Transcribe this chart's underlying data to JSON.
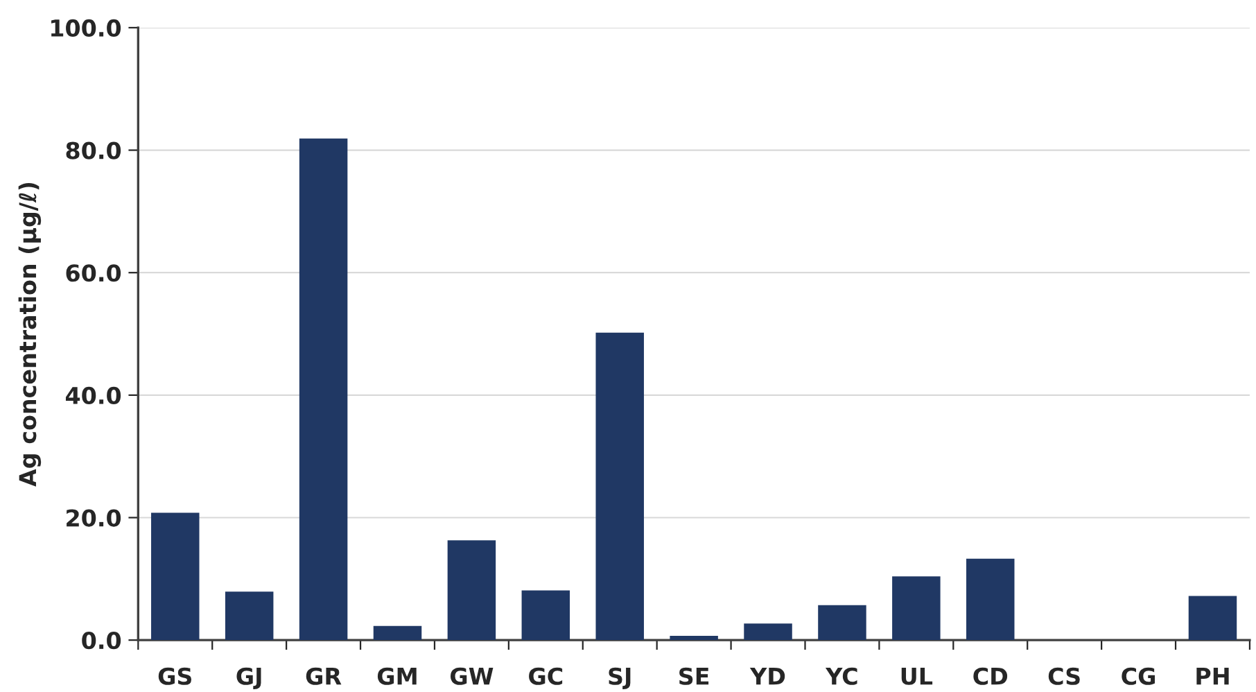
{
  "chart_data": {
    "type": "bar",
    "ylabel": "Ag concentration (μg/ℓ)",
    "categories": [
      "GS",
      "GJ",
      "GR",
      "GM",
      "GW",
      "GC",
      "SJ",
      "SE",
      "YD",
      "YC",
      "UL",
      "CD",
      "CS",
      "CG",
      "PH"
    ],
    "values": [
      20.8,
      7.9,
      81.9,
      2.3,
      16.3,
      8.1,
      50.2,
      0.7,
      2.7,
      5.7,
      10.4,
      13.3,
      0,
      0,
      7.2
    ],
    "color": "#203864",
    "ylim": [
      0,
      100
    ],
    "yticks": [
      {
        "value": 0,
        "label": "0.0"
      },
      {
        "value": 20,
        "label": "20.0"
      },
      {
        "value": 40,
        "label": "40.0"
      },
      {
        "value": 60,
        "label": "60.0"
      },
      {
        "value": 80,
        "label": "80.0"
      },
      {
        "value": 100,
        "label": "100.0"
      }
    ],
    "grid": "y"
  }
}
